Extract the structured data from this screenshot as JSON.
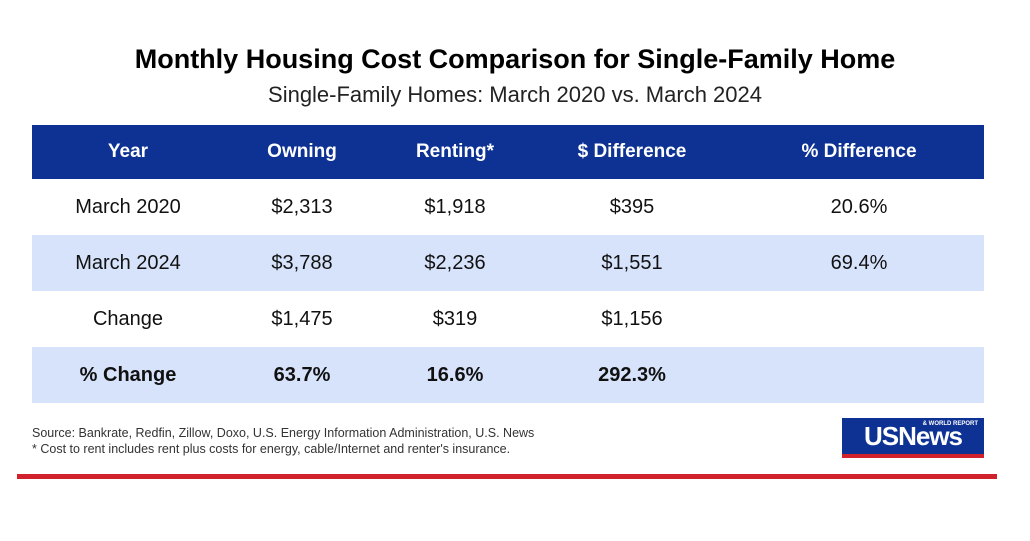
{
  "title": "Monthly Housing Cost Comparison for Single-Family Home",
  "subtitle": "Single-Family Homes: March 2020 vs. March 2024",
  "chart_data": {
    "type": "table",
    "columns": [
      "Year",
      "Owning",
      "Renting*",
      "$ Difference",
      "% Difference"
    ],
    "rows": [
      [
        "March 2020",
        "$2,313",
        "$1,918",
        "$395",
        "20.6%"
      ],
      [
        "March 2024",
        "$3,788",
        "$2,236",
        "$1,551",
        "69.4%"
      ],
      [
        "Change",
        "$1,475",
        "$319",
        "$1,156",
        ""
      ],
      [
        "% Change",
        "63.7%",
        "16.6%",
        "292.3%",
        ""
      ]
    ]
  },
  "source": "Source: Bankrate, Redfin, Zillow, Doxo, U.S. Energy Information Administration, U.S. News",
  "footnote": "* Cost to rent includes rent plus costs for energy, cable/Internet and renter's insurance.",
  "logo": {
    "text": "USNews",
    "small": "& WORLD REPORT"
  },
  "colors": {
    "header": "#0d3293",
    "alt_row": "#d7e3fb",
    "accent_red": "#d0212c"
  }
}
